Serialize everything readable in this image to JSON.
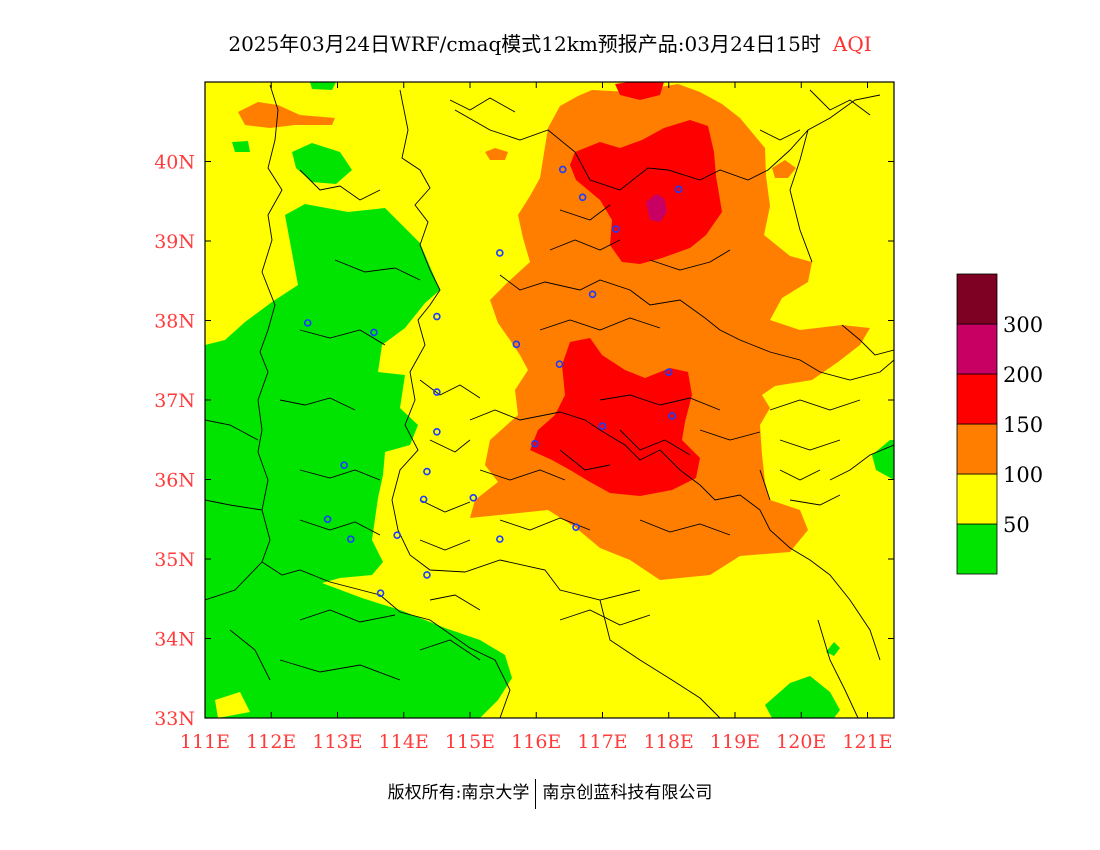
{
  "title": {
    "main": "2025年03月24日WRF/cmaq模式12km预报产品:03月24日15时",
    "variable": "AQI"
  },
  "map": {
    "lon_labels": [
      "111E",
      "112E",
      "113E",
      "114E",
      "115E",
      "116E",
      "117E",
      "118E",
      "119E",
      "120E",
      "121E"
    ],
    "lat_labels": [
      "33N",
      "34N",
      "35N",
      "36N",
      "37N",
      "38N",
      "39N",
      "40N"
    ],
    "lon_range": [
      111,
      121.4
    ],
    "lat_range": [
      33,
      41
    ],
    "tick_color": "#ff3b3b",
    "frame_color": "#000000"
  },
  "legend": {
    "levels": [
      {
        "label": "50",
        "color": "#00e400"
      },
      {
        "label": "100",
        "color": "#ffff00"
      },
      {
        "label": "150",
        "color": "#ff7e00"
      },
      {
        "label": "200",
        "color": "#ff0000"
      },
      {
        "label": "300",
        "color": "#c80064"
      },
      {
        "label": "",
        "color": "#7e0023"
      }
    ]
  },
  "cities": [
    {
      "lon": 116.4,
      "lat": 39.9
    },
    {
      "lon": 116.7,
      "lat": 39.55
    },
    {
      "lon": 118.15,
      "lat": 39.65
    },
    {
      "lon": 117.2,
      "lat": 39.15
    },
    {
      "lon": 115.45,
      "lat": 38.85
    },
    {
      "lon": 116.85,
      "lat": 38.33
    },
    {
      "lon": 112.55,
      "lat": 37.97
    },
    {
      "lon": 113.55,
      "lat": 37.85
    },
    {
      "lon": 114.5,
      "lat": 38.05
    },
    {
      "lon": 115.7,
      "lat": 37.7
    },
    {
      "lon": 116.35,
      "lat": 37.45
    },
    {
      "lon": 118.0,
      "lat": 37.35
    },
    {
      "lon": 114.5,
      "lat": 37.1
    },
    {
      "lon": 114.5,
      "lat": 36.6
    },
    {
      "lon": 117.0,
      "lat": 36.67
    },
    {
      "lon": 118.05,
      "lat": 36.8
    },
    {
      "lon": 115.98,
      "lat": 36.45
    },
    {
      "lon": 113.1,
      "lat": 36.18
    },
    {
      "lon": 114.35,
      "lat": 36.1
    },
    {
      "lon": 114.3,
      "lat": 35.75
    },
    {
      "lon": 115.05,
      "lat": 35.77
    },
    {
      "lon": 112.85,
      "lat": 35.5
    },
    {
      "lon": 113.2,
      "lat": 35.25
    },
    {
      "lon": 113.9,
      "lat": 35.3
    },
    {
      "lon": 115.45,
      "lat": 35.25
    },
    {
      "lon": 116.6,
      "lat": 35.4
    },
    {
      "lon": 114.35,
      "lat": 34.8
    },
    {
      "lon": 113.65,
      "lat": 34.57
    }
  ],
  "footer": {
    "left": "版权所有:南京大学",
    "right": "南京创蓝科技有限公司"
  }
}
